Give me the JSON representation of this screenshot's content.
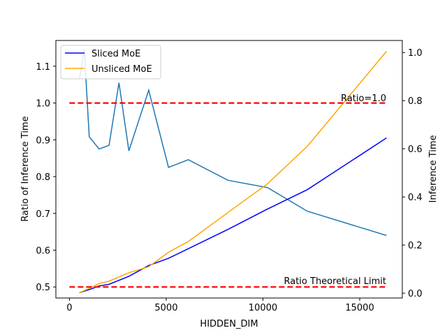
{
  "chart_data": {
    "type": "line",
    "xlabel": "HIDDEN_DIM",
    "ylabel_left": "Ratio of Inference Time",
    "ylabel_right": "Inference Time",
    "xlim": [
      -700,
      17200
    ],
    "ylim_left": [
      0.47,
      1.17
    ],
    "ylim_right": [
      -0.02,
      1.05
    ],
    "x_ticks": [
      0,
      5000,
      10000,
      15000
    ],
    "y_ticks_left": [
      0.5,
      0.6,
      0.7,
      0.8,
      0.9,
      1.0,
      1.1
    ],
    "y_ticks_right": [
      0.0,
      0.2,
      0.4,
      0.6,
      0.8,
      1.0
    ],
    "grid": false,
    "legend_position": "top-left",
    "ratio_series": {
      "color": "#1f77b4",
      "axis": "left",
      "x": [
        512,
        768,
        1024,
        1536,
        2048,
        2560,
        3072,
        4096,
        5120,
        6144,
        8192,
        10240,
        12288,
        16384
      ],
      "y": [
        1.065,
        1.145,
        0.908,
        0.875,
        0.885,
        1.055,
        0.87,
        1.035,
        0.825,
        0.846,
        0.79,
        0.77,
        0.706,
        0.64
      ]
    },
    "series": [
      {
        "name": "Sliced MoE",
        "color": "#0000ff",
        "axis": "right",
        "x": [
          512,
          1024,
          1536,
          2048,
          3072,
          4096,
          5120,
          6144,
          8192,
          10240,
          12288,
          16384
        ],
        "y": [
          0.002,
          0.015,
          0.03,
          0.037,
          0.07,
          0.115,
          0.145,
          0.185,
          0.265,
          0.35,
          0.43,
          0.645
        ]
      },
      {
        "name": "Unsliced MoE",
        "color": "#ffa500",
        "axis": "right",
        "x": [
          512,
          1024,
          1536,
          2048,
          3072,
          4096,
          5120,
          6144,
          8192,
          10240,
          12288,
          16384
        ],
        "y": [
          0.002,
          0.02,
          0.04,
          0.05,
          0.085,
          0.11,
          0.17,
          0.215,
          0.335,
          0.455,
          0.61,
          1.005
        ]
      }
    ],
    "reference_lines": [
      {
        "y": 1.0,
        "axis": "left",
        "color": "#ff0000",
        "style": "dashed",
        "label": "Ratio=1.0"
      },
      {
        "y": 0.5,
        "axis": "left",
        "color": "#ff0000",
        "style": "dashed",
        "label": "Ratio Theoretical Limit"
      }
    ],
    "reference_x_range": [
      0,
      16384
    ]
  }
}
